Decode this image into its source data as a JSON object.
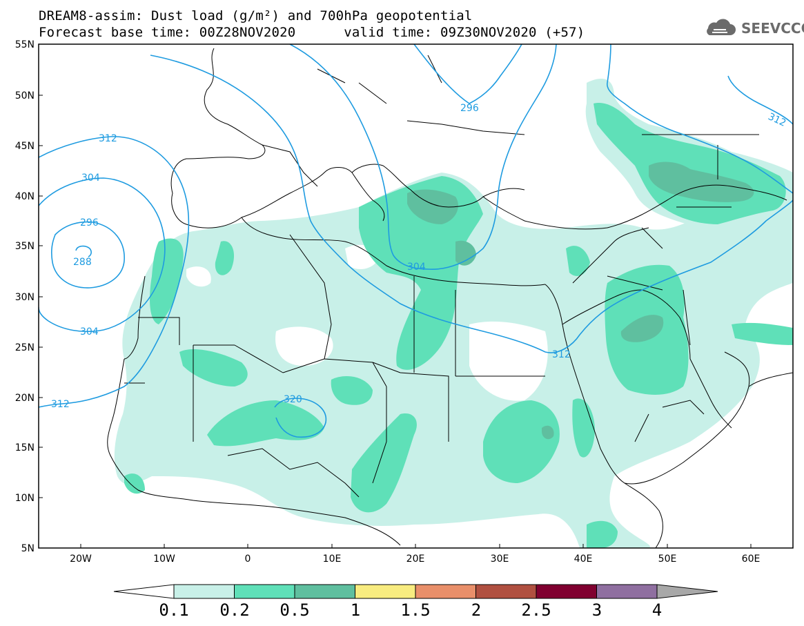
{
  "header": {
    "title_line1": "DREAM8-assim: Dust load (g/m²) and 700hPa geopotential",
    "title_line2": "Forecast base time: 00Z28NOV2020      valid time: 09Z30NOV2020 (+57)"
  },
  "logo": {
    "text": "SEEVCCC",
    "icon": "cloud-icon"
  },
  "map": {
    "lat_ticks": [
      "55N",
      "50N",
      "45N",
      "40N",
      "35N",
      "30N",
      "25N",
      "20N",
      "15N",
      "10N",
      "5N"
    ],
    "lon_ticks": [
      "20W",
      "10W",
      "0",
      "10E",
      "20E",
      "30E",
      "40E",
      "50E",
      "60E"
    ],
    "contour_labels": [
      "312",
      "304",
      "296",
      "288",
      "304",
      "312",
      "320",
      "304",
      "312",
      "296",
      "312"
    ]
  },
  "colorbar": {
    "labels": [
      "0.1",
      "0.2",
      "0.5",
      "1",
      "1.5",
      "2",
      "2.5",
      "3",
      "4"
    ],
    "colors": [
      "#c8f0e8",
      "#5fe0b8",
      "#5fbf9f",
      "#f8ec80",
      "#e98f6a",
      "#b05040",
      "#800030",
      "#8f6fa0",
      "#a8a8a8"
    ]
  },
  "colors": {
    "dust_0_1": "#c8f0e8",
    "dust_0_2": "#5fe0b8",
    "dust_0_5": "#5fbf9f",
    "contour": "#1e9be0",
    "coastline": "#000000"
  }
}
